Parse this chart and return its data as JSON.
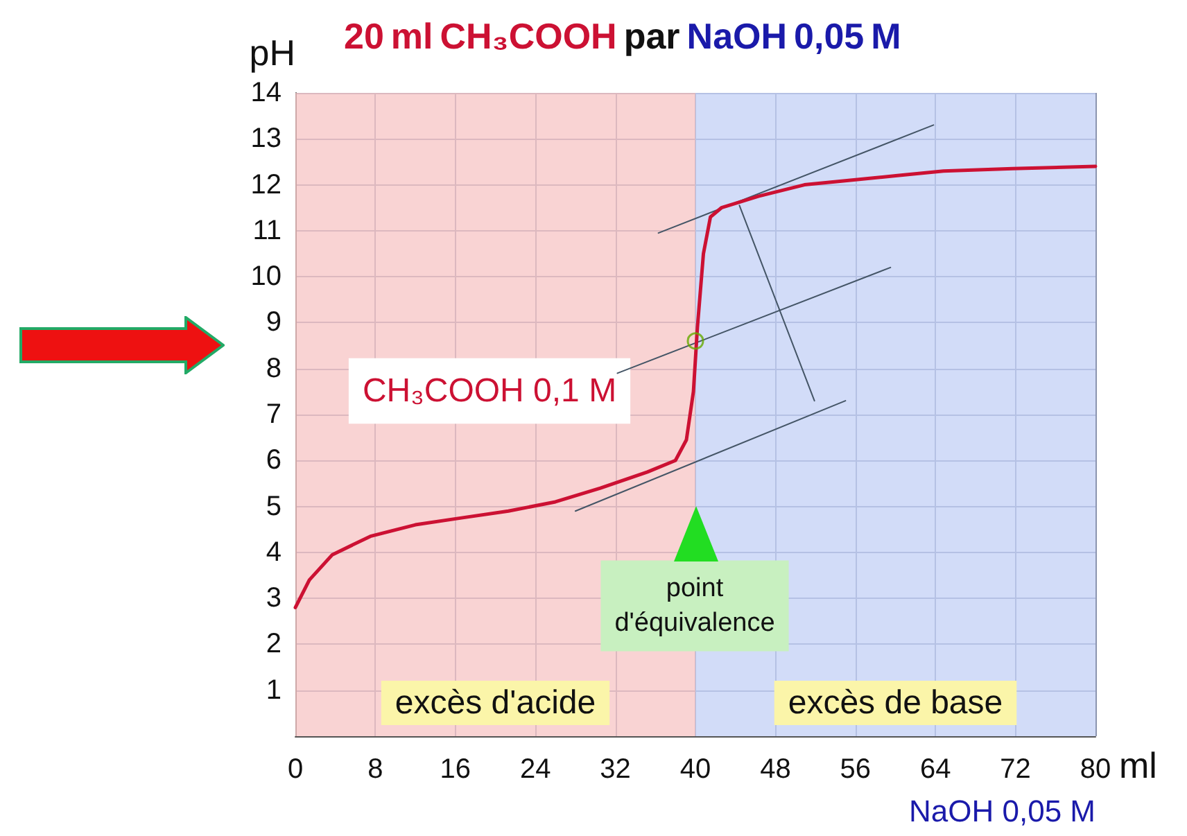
{
  "chart_data": {
    "type": "line",
    "title": "20 ml CH₃COOH par NaOH 0,05 M",
    "xlabel": "ml",
    "ylabel": "pH",
    "annotations": [
      "CH₃COOH 0,1 M",
      "point d'équivalence",
      "NaOH 0,05 M"
    ],
    "xlim": [
      0,
      80
    ],
    "xticks": [
      0,
      8,
      16,
      24,
      32,
      40,
      48,
      56,
      64,
      72,
      80
    ],
    "ylim": [
      0,
      14
    ],
    "yticks": [
      1,
      2,
      3,
      4,
      5,
      6,
      7,
      8,
      9,
      10,
      11,
      12,
      13,
      14
    ],
    "grid": true,
    "marker": "none",
    "line_style": "solid",
    "bands": [
      {
        "axis": "x",
        "from": 0,
        "to": 40,
        "label": "excès d'acide",
        "color": "#f7c4c4"
      },
      {
        "axis": "x",
        "from": 40,
        "to": 80,
        "label": "excès de base",
        "color": "#c3d0f5"
      }
    ],
    "series": [
      {
        "color": "#cc1133",
        "x": [
          0,
          1.4,
          3.7,
          7.5,
          12,
          16.6,
          21.3,
          26,
          30.5,
          35.2,
          38,
          39.1,
          39.8,
          40.2,
          40.8,
          41.5,
          42.6,
          46.3,
          50.9,
          55.5,
          60.2,
          64.8,
          71.7,
          80
        ],
        "values": [
          2.8,
          3.4,
          3.95,
          4.35,
          4.6,
          4.75,
          4.9,
          5.1,
          5.4,
          5.75,
          6.0,
          6.45,
          7.5,
          8.9,
          10.5,
          11.3,
          11.5,
          11.75,
          12.0,
          12.1,
          12.2,
          12.3,
          12.35,
          12.4
        ]
      },
      {
        "color": "#445566",
        "x": [
          36.3,
          63.8
        ],
        "values": [
          10.95,
          13.3
        ]
      },
      {
        "color": "#445566",
        "x": [
          32.2,
          59.5
        ],
        "values": [
          7.9,
          10.2
        ]
      },
      {
        "color": "#445566",
        "x": [
          28,
          55
        ],
        "values": [
          4.9,
          7.3
        ]
      },
      {
        "color": "#445566",
        "x": [
          44.4,
          51.9
        ],
        "values": [
          11.55,
          7.3
        ]
      },
      {
        "type": "scatter",
        "marker": "circle",
        "color": "#66aa00",
        "x": [
          40
        ],
        "values": [
          8.6
        ]
      }
    ]
  }
}
